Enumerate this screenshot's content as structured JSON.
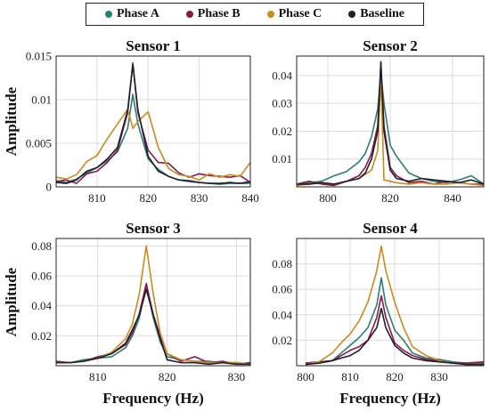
{
  "legend": {
    "entries": [
      {
        "name": "Phase A",
        "color": "#2a7f73"
      },
      {
        "name": "Phase B",
        "color": "#8b1a4a"
      },
      {
        "name": "Phase C",
        "color": "#cc8a1e"
      },
      {
        "name": "Baseline",
        "color": "#1e1e2e"
      }
    ]
  },
  "chart_data": [
    {
      "type": "line",
      "title": "Sensor 1",
      "xlabel": "",
      "ylabel": "Amplitude",
      "xlim": [
        802,
        840
      ],
      "ylim": [
        0,
        0.015
      ],
      "xticks": [
        810,
        820,
        830,
        840
      ],
      "yticks": [
        0,
        0.005,
        0.01,
        0.015
      ],
      "ytick_labels": [
        "0",
        "0.005",
        "0.01",
        "0.015"
      ],
      "grid": true,
      "series": [
        {
          "name": "Phase A",
          "x": [
            802,
            804,
            806,
            808,
            810,
            812,
            814,
            816,
            817,
            818,
            820,
            822,
            824,
            826,
            828,
            830,
            832,
            834,
            836,
            838,
            840
          ],
          "y": [
            0.0007,
            0.0005,
            0.0009,
            0.0016,
            0.0022,
            0.003,
            0.004,
            0.0067,
            0.0106,
            0.0072,
            0.0032,
            0.002,
            0.0012,
            0.0008,
            0.0006,
            0.0005,
            0.0004,
            0.0003,
            0.0004,
            0.0004,
            0.0004
          ]
        },
        {
          "name": "Phase B",
          "x": [
            802,
            804,
            806,
            808,
            810,
            812,
            814,
            816,
            817,
            818,
            820,
            822,
            824,
            826,
            828,
            830,
            832,
            834,
            836,
            838,
            840
          ],
          "y": [
            0.0006,
            0.0008,
            0.0004,
            0.0015,
            0.0018,
            0.0028,
            0.0042,
            0.0085,
            0.0142,
            0.0085,
            0.0042,
            0.0028,
            0.0027,
            0.0016,
            0.0011,
            0.0015,
            0.0013,
            0.0012,
            0.0011,
            0.0013,
            0.0005
          ]
        },
        {
          "name": "Phase C",
          "x": [
            802,
            804,
            806,
            808,
            810,
            812,
            814,
            816,
            817,
            818,
            820,
            822,
            824,
            826,
            828,
            830,
            832,
            834,
            836,
            838,
            840
          ],
          "y": [
            0.0011,
            0.0009,
            0.0014,
            0.0029,
            0.0036,
            0.0055,
            0.0072,
            0.0089,
            0.0067,
            0.0075,
            0.0086,
            0.0045,
            0.0021,
            0.0014,
            0.0012,
            0.0008,
            0.0015,
            0.0011,
            0.0014,
            0.0012,
            0.0028
          ]
        },
        {
          "name": "Baseline",
          "x": [
            802,
            804,
            806,
            808,
            810,
            812,
            814,
            816,
            817,
            818,
            820,
            822,
            824,
            826,
            828,
            830,
            832,
            834,
            836,
            838,
            840
          ],
          "y": [
            0.0005,
            0.0004,
            0.0008,
            0.0018,
            0.0022,
            0.0032,
            0.0045,
            0.0088,
            0.014,
            0.0088,
            0.0035,
            0.0018,
            0.0012,
            0.0008,
            0.0007,
            0.0005,
            0.0004,
            0.0004,
            0.0005,
            0.0004,
            0.0006
          ]
        }
      ]
    },
    {
      "type": "line",
      "title": "Sensor 2",
      "xlabel": "",
      "ylabel": "",
      "xlim": [
        790,
        850
      ],
      "ylim": [
        0,
        0.047
      ],
      "xticks": [
        800,
        820,
        840
      ],
      "yticks": [
        0.01,
        0.02,
        0.03,
        0.04
      ],
      "ytick_labels": [
        "0.01",
        "0.02",
        "0.03",
        "0.04"
      ],
      "grid": true,
      "series": [
        {
          "name": "Phase A",
          "x": [
            790,
            794,
            798,
            802,
            806,
            810,
            812,
            814,
            816,
            817,
            818,
            820,
            822,
            826,
            830,
            834,
            838,
            842,
            846,
            850
          ],
          "y": [
            0.001,
            0.0015,
            0.002,
            0.004,
            0.0055,
            0.009,
            0.012,
            0.018,
            0.028,
            0.041,
            0.03,
            0.015,
            0.011,
            0.005,
            0.003,
            0.002,
            0.0015,
            0.0025,
            0.004,
            0.001
          ]
        },
        {
          "name": "Phase B",
          "x": [
            790,
            794,
            798,
            802,
            806,
            810,
            812,
            814,
            816,
            817,
            818,
            820,
            822,
            826,
            830,
            834,
            838,
            842,
            846,
            850
          ],
          "y": [
            0.001,
            0.002,
            0.001,
            0.0005,
            0.002,
            0.004,
            0.007,
            0.012,
            0.022,
            0.044,
            0.022,
            0.007,
            0.004,
            0.0015,
            0.002,
            0.001,
            0.002,
            0.0015,
            0.001,
            0.001
          ]
        },
        {
          "name": "Phase C",
          "x": [
            790,
            794,
            798,
            802,
            806,
            810,
            812,
            814,
            816,
            817,
            818,
            820,
            822,
            826,
            830,
            834,
            838,
            842,
            846,
            850
          ],
          "y": [
            0.0005,
            0.001,
            0.0015,
            0.001,
            0.002,
            0.003,
            0.0045,
            0.006,
            0.013,
            0.04,
            0.0025,
            0.002,
            0.0015,
            0.001,
            0.0015,
            0.001,
            0.001,
            0.0015,
            0.001,
            0.0005
          ]
        },
        {
          "name": "Baseline",
          "x": [
            790,
            794,
            798,
            802,
            806,
            810,
            812,
            814,
            816,
            817,
            818,
            820,
            822,
            826,
            830,
            834,
            838,
            842,
            846,
            850
          ],
          "y": [
            0.001,
            0.001,
            0.0015,
            0.001,
            0.002,
            0.003,
            0.005,
            0.01,
            0.02,
            0.045,
            0.02,
            0.006,
            0.003,
            0.002,
            0.003,
            0.0025,
            0.002,
            0.0015,
            0.0025,
            0.001
          ]
        }
      ]
    },
    {
      "type": "line",
      "title": "Sensor 3",
      "xlabel": "Frequency (Hz)",
      "ylabel": "Amplitude",
      "xlim": [
        804,
        832
      ],
      "ylim": [
        0,
        0.085
      ],
      "xticks": [
        810,
        820,
        830
      ],
      "yticks": [
        0.02,
        0.04,
        0.06,
        0.08
      ],
      "ytick_labels": [
        "0.02",
        "0.04",
        "0.06",
        "0.08"
      ],
      "grid": true,
      "series": [
        {
          "name": "Phase A",
          "x": [
            804,
            806,
            808,
            810,
            812,
            814,
            815,
            816,
            817,
            818,
            819,
            820,
            822,
            824,
            826,
            828,
            830,
            832
          ],
          "y": [
            0.002,
            0.002,
            0.004,
            0.005,
            0.006,
            0.012,
            0.02,
            0.032,
            0.054,
            0.032,
            0.016,
            0.006,
            0.004,
            0.003,
            0.003,
            0.002,
            0.002,
            0.001
          ]
        },
        {
          "name": "Phase B",
          "x": [
            804,
            806,
            808,
            810,
            812,
            814,
            815,
            816,
            817,
            818,
            819,
            820,
            822,
            824,
            826,
            828,
            830,
            832
          ],
          "y": [
            0.003,
            0.002,
            0.003,
            0.006,
            0.008,
            0.014,
            0.022,
            0.035,
            0.055,
            0.034,
            0.02,
            0.008,
            0.003,
            0.006,
            0.002,
            0.003,
            0.001,
            0.002
          ]
        },
        {
          "name": "Phase C",
          "x": [
            804,
            806,
            808,
            810,
            812,
            814,
            815,
            816,
            817,
            818,
            819,
            820,
            822,
            824,
            826,
            828,
            830,
            832
          ],
          "y": [
            0.002,
            0.002,
            0.003,
            0.005,
            0.009,
            0.018,
            0.028,
            0.048,
            0.08,
            0.048,
            0.022,
            0.008,
            0.004,
            0.003,
            0.002,
            0.002,
            0.002,
            0.001
          ]
        },
        {
          "name": "Baseline",
          "x": [
            804,
            806,
            808,
            810,
            812,
            814,
            815,
            816,
            817,
            818,
            819,
            820,
            822,
            824,
            826,
            828,
            830,
            832
          ],
          "y": [
            0.002,
            0.002,
            0.003,
            0.005,
            0.008,
            0.015,
            0.024,
            0.034,
            0.051,
            0.034,
            0.018,
            0.004,
            0.002,
            0.002,
            0.001,
            0.002,
            0.001,
            0.001
          ]
        }
      ]
    },
    {
      "type": "line",
      "title": "Sensor 4",
      "xlabel": "Frequency (Hz)",
      "ylabel": "",
      "xlim": [
        798,
        840
      ],
      "ylim": [
        0,
        0.1
      ],
      "xticks": [
        800,
        810,
        820,
        830
      ],
      "yticks": [
        0.02,
        0.04,
        0.06,
        0.08
      ],
      "ytick_labels": [
        "0.02",
        "0.04",
        "0.06",
        "0.08"
      ],
      "grid": true,
      "series": [
        {
          "name": "Phase A",
          "x": [
            800,
            803,
            806,
            808,
            810,
            812,
            814,
            816,
            817,
            818,
            820,
            822,
            824,
            827,
            830,
            833,
            836,
            840
          ],
          "y": [
            0.002,
            0.002,
            0.004,
            0.01,
            0.016,
            0.022,
            0.03,
            0.048,
            0.069,
            0.048,
            0.028,
            0.02,
            0.01,
            0.006,
            0.005,
            0.003,
            0.002,
            0.002
          ]
        },
        {
          "name": "Phase B",
          "x": [
            800,
            803,
            806,
            808,
            810,
            812,
            814,
            816,
            817,
            818,
            820,
            822,
            824,
            827,
            830,
            833,
            836,
            840
          ],
          "y": [
            0.002,
            0.003,
            0.004,
            0.008,
            0.012,
            0.015,
            0.02,
            0.038,
            0.055,
            0.038,
            0.018,
            0.012,
            0.008,
            0.005,
            0.004,
            0.002,
            0.002,
            0.003
          ]
        },
        {
          "name": "Phase C",
          "x": [
            800,
            803,
            806,
            808,
            810,
            812,
            814,
            816,
            817,
            818,
            820,
            822,
            824,
            827,
            830,
            833,
            836,
            840
          ],
          "y": [
            0.001,
            0.003,
            0.01,
            0.018,
            0.025,
            0.035,
            0.05,
            0.075,
            0.094,
            0.075,
            0.05,
            0.03,
            0.015,
            0.008,
            0.004,
            0.002,
            0.001,
            0.001
          ]
        },
        {
          "name": "Baseline",
          "x": [
            800,
            803,
            806,
            808,
            810,
            812,
            814,
            816,
            817,
            818,
            820,
            822,
            824,
            827,
            830,
            833,
            836,
            840
          ],
          "y": [
            0.001,
            0.002,
            0.004,
            0.006,
            0.008,
            0.012,
            0.02,
            0.03,
            0.045,
            0.03,
            0.016,
            0.01,
            0.006,
            0.004,
            0.003,
            0.002,
            0.001,
            0.001
          ]
        }
      ]
    }
  ]
}
